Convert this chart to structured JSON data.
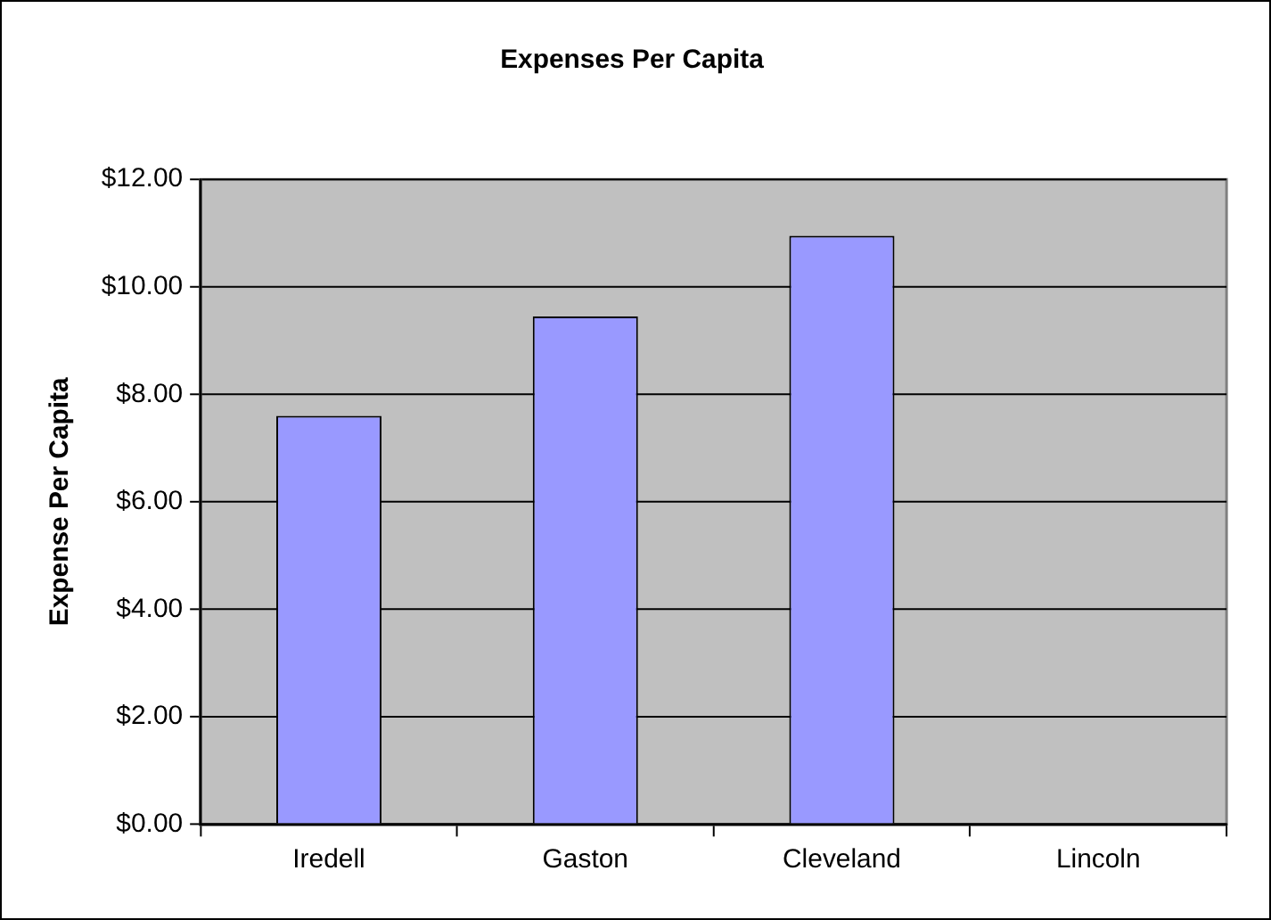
{
  "chart_data": {
    "type": "bar",
    "title": "Expenses Per Capita",
    "ylabel": "Expense Per Capita",
    "categories": [
      "Iredell",
      "Gaston",
      "Cleveland",
      "Lincoln"
    ],
    "values": [
      7.6,
      9.45,
      10.95,
      null
    ],
    "color": "#9999ff",
    "ylim": [
      0,
      12
    ],
    "yticks": [
      {
        "value": 0,
        "label": "$0.00"
      },
      {
        "value": 2,
        "label": "$2.00"
      },
      {
        "value": 4,
        "label": "$4.00"
      },
      {
        "value": 6,
        "label": "$6.00"
      },
      {
        "value": 8,
        "label": "$8.00"
      },
      {
        "value": 10,
        "label": "$10.00"
      },
      {
        "value": 12,
        "label": "$12.00"
      }
    ],
    "grid": "y",
    "legend": false
  }
}
